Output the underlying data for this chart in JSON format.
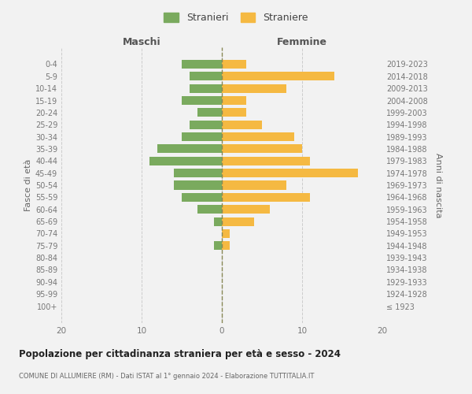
{
  "age_groups": [
    "100+",
    "95-99",
    "90-94",
    "85-89",
    "80-84",
    "75-79",
    "70-74",
    "65-69",
    "60-64",
    "55-59",
    "50-54",
    "45-49",
    "40-44",
    "35-39",
    "30-34",
    "25-29",
    "20-24",
    "15-19",
    "10-14",
    "5-9",
    "0-4"
  ],
  "birth_years": [
    "≤ 1923",
    "1924-1928",
    "1929-1933",
    "1934-1938",
    "1939-1943",
    "1944-1948",
    "1949-1953",
    "1954-1958",
    "1959-1963",
    "1964-1968",
    "1969-1973",
    "1974-1978",
    "1979-1983",
    "1984-1988",
    "1989-1993",
    "1994-1998",
    "1999-2003",
    "2004-2008",
    "2009-2013",
    "2014-2018",
    "2019-2023"
  ],
  "maschi": [
    0,
    0,
    0,
    0,
    0,
    1,
    0,
    1,
    3,
    5,
    6,
    6,
    9,
    8,
    5,
    4,
    3,
    5,
    4,
    4,
    5
  ],
  "femmine": [
    0,
    0,
    0,
    0,
    0,
    1,
    1,
    4,
    6,
    11,
    8,
    17,
    11,
    10,
    9,
    5,
    3,
    3,
    8,
    14,
    3
  ],
  "male_color": "#7aaa5e",
  "female_color": "#f5b942",
  "bg_color": "#f2f2f2",
  "grid_color": "#cccccc",
  "title": "Popolazione per cittadinanza straniera per età e sesso - 2024",
  "subtitle": "COMUNE DI ALLUMIERE (RM) - Dati ISTAT al 1° gennaio 2024 - Elaborazione TUTTITALIA.IT",
  "ylabel_left": "Fasce di età",
  "ylabel_right": "Anni di nascita",
  "xlabel_left": "Maschi",
  "xlabel_right": "Femmine",
  "legend_male": "Stranieri",
  "legend_female": "Straniere",
  "xlim": 20
}
